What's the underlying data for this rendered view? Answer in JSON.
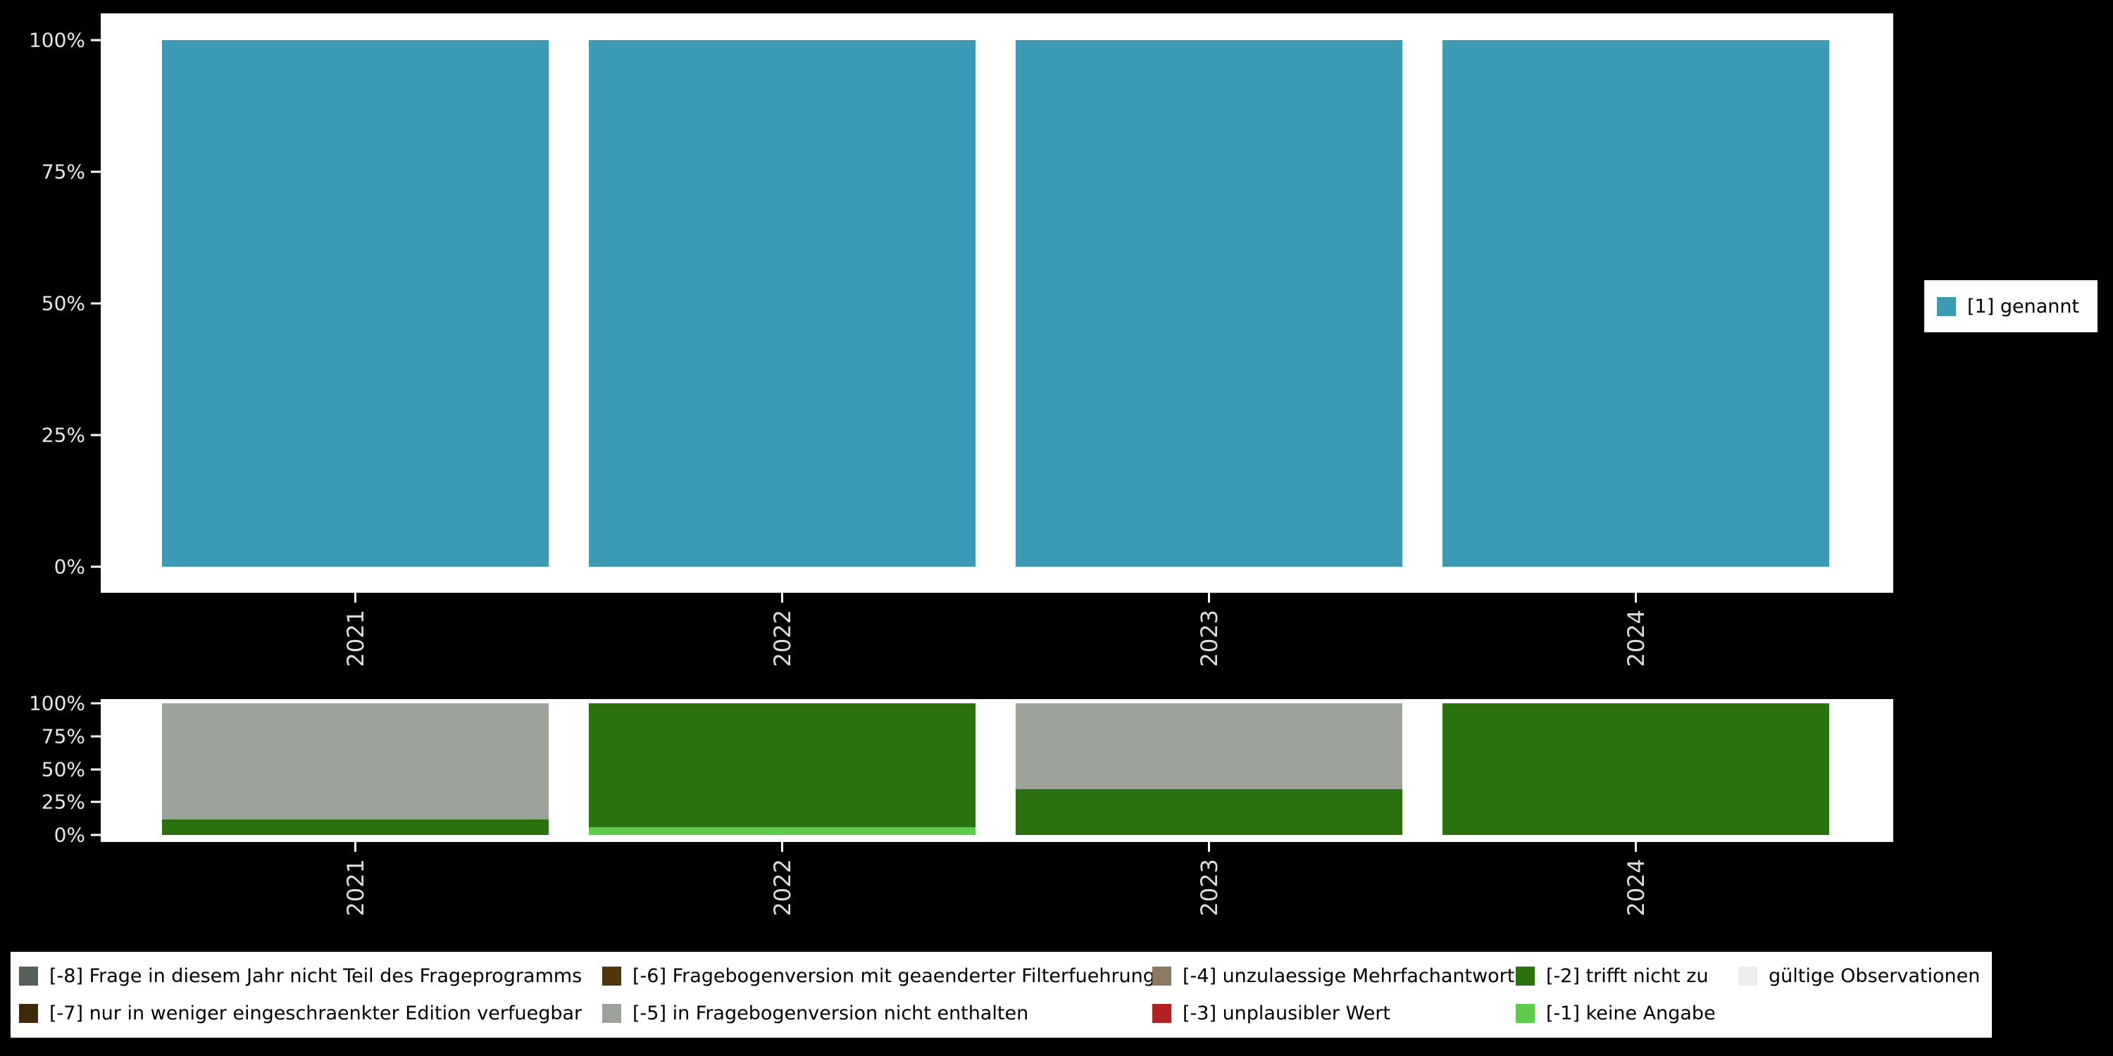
{
  "page": {
    "background": "#000000"
  },
  "colors": {
    "genannt_teal": "#3c9ab5",
    "gray_missing": "#9da39b",
    "dark_green": "#2a7110",
    "light_green": "#5ecb4d",
    "dark_gray": "#566058",
    "dark_brown": "#3e2a08",
    "brown": "#53350b",
    "gray_brown": "#897a60",
    "red": "#b22222",
    "valid_light": "#ededeb",
    "panel_bg": "#ffffff",
    "axis_text": "#e8e8e8"
  },
  "chart_data": [
    {
      "type": "bar",
      "stacked": true,
      "title": "",
      "xlabel": "",
      "ylabel": "",
      "categories": [
        "2021",
        "2022",
        "2023",
        "2024"
      ],
      "series": [
        {
          "name": "[1] genannt",
          "color_key": "genannt_teal",
          "values": [
            100,
            100,
            100,
            100
          ]
        }
      ],
      "ylim": [
        0,
        100
      ],
      "yticks": [
        {
          "label": "0%",
          "value": 0
        },
        {
          "label": "25%",
          "value": 25
        },
        {
          "label": "50%",
          "value": 50
        },
        {
          "label": "75%",
          "value": 75
        },
        {
          "label": "100%",
          "value": 100
        }
      ],
      "legend_position": "right",
      "grid": false
    },
    {
      "type": "bar",
      "stacked": true,
      "title": "",
      "xlabel": "",
      "ylabel": "",
      "categories": [
        "2021",
        "2022",
        "2023",
        "2024"
      ],
      "series": [
        {
          "name": "[-1] keine Angabe",
          "color_key": "light_green",
          "values": [
            0,
            6,
            0,
            0
          ]
        },
        {
          "name": "[-2] trifft nicht zu",
          "color_key": "dark_green",
          "values": [
            12,
            94,
            35,
            100
          ]
        },
        {
          "name": "[-5] in Fragebogenversion nicht enthalten",
          "color_key": "gray_missing",
          "values": [
            88,
            0,
            65,
            0
          ]
        }
      ],
      "ylim": [
        0,
        100
      ],
      "yticks": [
        {
          "label": "0%",
          "value": 0
        },
        {
          "label": "25%",
          "value": 25
        },
        {
          "label": "50%",
          "value": 50
        },
        {
          "label": "75%",
          "value": 75
        },
        {
          "label": "100%",
          "value": 100
        }
      ],
      "legend_position": "bottom",
      "grid": false
    }
  ],
  "right_legend": {
    "label": "[1] genannt"
  },
  "missing_legend": {
    "rows": [
      [
        {
          "label": "[-8] Frage in diesem Jahr nicht Teil des Frageprogramms",
          "color_key": "dark_gray"
        },
        {
          "label": "[-6] Fragebogenversion mit geaenderter Filterfuehrung",
          "color_key": "brown"
        },
        {
          "label": "[-4] unzulaessige Mehrfachantwort",
          "color_key": "gray_brown"
        },
        {
          "label": "[-2] trifft nicht zu",
          "color_key": "dark_green"
        },
        {
          "label": "gültige Observationen",
          "color_key": "valid_light"
        }
      ],
      [
        {
          "label": "[-7] nur in weniger eingeschraenkter Edition verfuegbar",
          "color_key": "dark_brown"
        },
        {
          "label": "[-5] in Fragebogenversion nicht enthalten",
          "color_key": "gray_missing"
        },
        {
          "label": "[-3] unplausibler Wert",
          "color_key": "red"
        },
        {
          "label": "[-1] keine Angabe",
          "color_key": "light_green"
        }
      ]
    ]
  }
}
